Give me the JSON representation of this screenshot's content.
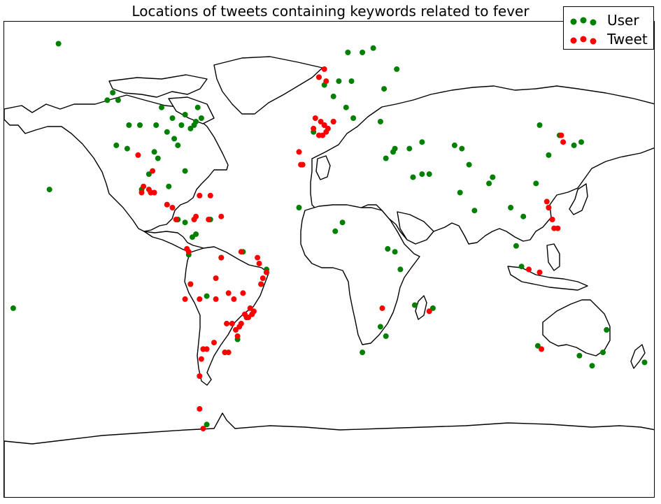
{
  "title": "Locations of tweets containing keywords related to fever",
  "legend": {
    "placement": "top-right",
    "entries": [
      {
        "label": "User",
        "color": "#008000"
      },
      {
        "label": "Tweet",
        "color": "#ff0000"
      }
    ]
  },
  "map": {
    "projection": "miller",
    "land_fill": "#ffffff",
    "coastline_color": "#000000",
    "borders": "country and US/Brazil state boundaries"
  },
  "chart_data": {
    "type": "scatter",
    "title": "Locations of tweets containing keywords related to fever",
    "series": [
      {
        "name": "User",
        "color": "#008000",
        "points": [
          [
            -150,
            61
          ],
          [
            -155,
            20
          ],
          [
            -120,
            49
          ],
          [
            -123,
            47
          ],
          [
            -118,
            34
          ],
          [
            -112,
            33
          ],
          [
            -105,
            40
          ],
          [
            -97,
            32
          ],
          [
            -95,
            30
          ],
          [
            -90,
            38
          ],
          [
            -87,
            42
          ],
          [
            -84,
            34
          ],
          [
            -80,
            26
          ],
          [
            -75,
            40
          ],
          [
            -74,
            41
          ],
          [
            -71,
            42
          ],
          [
            -77,
            39
          ],
          [
            -82,
            40
          ],
          [
            -93,
            45
          ],
          [
            -104,
            20
          ],
          [
            -99,
            19
          ],
          [
            -100,
            25
          ],
          [
            -89,
            21
          ],
          [
            -90,
            15
          ],
          [
            -84,
            10
          ],
          [
            -80,
            9
          ],
          [
            -76,
            4
          ],
          [
            -74,
            5
          ],
          [
            -78,
            -2
          ],
          [
            -77,
            -12
          ],
          [
            -68,
            -16
          ],
          [
            -66,
            10
          ],
          [
            -70,
            -33
          ],
          [
            -58,
            -34
          ],
          [
            -46,
            -23
          ],
          [
            -43,
            -22
          ],
          [
            -38,
            -12
          ],
          [
            -35,
            -8
          ],
          [
            -48,
            -1
          ],
          [
            -60,
            -3
          ],
          [
            -68,
            -54
          ],
          [
            -3,
            40
          ],
          [
            2,
            41
          ],
          [
            -9,
            38
          ],
          [
            2,
            48
          ],
          [
            12,
            52
          ],
          [
            13,
            42
          ],
          [
            9,
            45
          ],
          [
            -6,
            53
          ],
          [
            -3,
            51
          ],
          [
            5,
            52
          ],
          [
            18,
            59
          ],
          [
            10,
            59
          ],
          [
            24,
            60
          ],
          [
            37,
            55
          ],
          [
            30,
            50
          ],
          [
            28,
            41
          ],
          [
            36,
            33
          ],
          [
            31,
            30
          ],
          [
            35,
            32
          ],
          [
            46,
            24
          ],
          [
            51,
            25
          ],
          [
            55,
            25
          ],
          [
            44,
            33
          ],
          [
            51,
            35
          ],
          [
            69,
            34
          ],
          [
            73,
            33
          ],
          [
            77,
            28
          ],
          [
            72,
            19
          ],
          [
            80,
            13
          ],
          [
            88,
            22
          ],
          [
            90,
            24
          ],
          [
            100,
            14
          ],
          [
            103,
            1
          ],
          [
            106,
            -6
          ],
          [
            107,
            11
          ],
          [
            116,
            40
          ],
          [
            121,
            31
          ],
          [
            114,
            22
          ],
          [
            127,
            37
          ],
          [
            139,
            35
          ],
          [
            135,
            34
          ],
          [
            121,
            14
          ],
          [
            151,
            -34
          ],
          [
            145,
            -38
          ],
          [
            153,
            -27
          ],
          [
            115,
            -32
          ],
          [
            138,
            -35
          ],
          [
            174,
            -37
          ],
          [
            3,
            6
          ],
          [
            -17,
            14
          ],
          [
            7,
            9
          ],
          [
            32,
            0
          ],
          [
            36,
            -1
          ],
          [
            39,
            -7
          ],
          [
            28,
            -26
          ],
          [
            18,
            -34
          ],
          [
            31,
            -29
          ],
          [
            47,
            -19
          ],
          [
            57,
            -20
          ],
          [
            -175,
            -20
          ],
          [
            -35,
            -7
          ],
          [
            -51,
            -30
          ],
          [
            -80,
            43
          ],
          [
            -73,
            45
          ],
          [
            -86,
            36
          ],
          [
            -96,
            40
          ],
          [
            -111,
            40
          ],
          [
            -117,
            47
          ]
        ]
      },
      {
        "name": "Tweet",
        "color": "#ff0000",
        "points": [
          [
            -3,
            40
          ],
          [
            -6,
            37
          ],
          [
            -4,
            37
          ],
          [
            -1,
            39
          ],
          [
            2,
            41
          ],
          [
            -8,
            42
          ],
          [
            -5,
            41
          ],
          [
            -2,
            38
          ],
          [
            -16,
            28
          ],
          [
            -15,
            28
          ],
          [
            -17,
            32
          ],
          [
            -9,
            39
          ],
          [
            -6,
            53
          ],
          [
            -2,
            52
          ],
          [
            -3,
            55
          ],
          [
            -99,
            19
          ],
          [
            -100,
            20
          ],
          [
            -103,
            21
          ],
          [
            -104,
            19
          ],
          [
            -97,
            19
          ],
          [
            -98,
            26
          ],
          [
            -106,
            31
          ],
          [
            -90,
            15
          ],
          [
            -87,
            14
          ],
          [
            -66,
            18
          ],
          [
            -75,
            10
          ],
          [
            -74,
            11
          ],
          [
            -67,
            10
          ],
          [
            -77,
            -12
          ],
          [
            -78,
            -1
          ],
          [
            -79,
            0
          ],
          [
            -72,
            -17
          ],
          [
            -63,
            -17
          ],
          [
            -57,
            -25
          ],
          [
            -58,
            -34
          ],
          [
            -56,
            -34
          ],
          [
            -64,
            -31
          ],
          [
            -68,
            -33
          ],
          [
            -70,
            -33
          ],
          [
            -71,
            -36
          ],
          [
            -72,
            -41
          ],
          [
            -46,
            -23
          ],
          [
            -43,
            -22
          ],
          [
            -47,
            -22
          ],
          [
            -49,
            -25
          ],
          [
            -51,
            -29
          ],
          [
            -44,
            -20
          ],
          [
            -48,
            -15
          ],
          [
            -38,
            -12
          ],
          [
            -35,
            -8
          ],
          [
            -40,
            -3
          ],
          [
            -49,
            -1
          ],
          [
            -60,
            -3
          ],
          [
            -54,
            -25
          ],
          [
            -52,
            -27
          ],
          [
            -50,
            -26
          ],
          [
            -45,
            -23
          ],
          [
            -42,
            -21
          ],
          [
            -53,
            -17
          ],
          [
            -56,
            -15
          ],
          [
            -39,
            -5
          ],
          [
            -37,
            -10
          ],
          [
            -63,
            -10
          ],
          [
            -70,
            -55
          ],
          [
            -72,
            -50
          ],
          [
            -80,
            -17
          ],
          [
            121,
            14
          ],
          [
            123,
            10
          ],
          [
            124,
            7
          ],
          [
            120,
            16
          ],
          [
            126,
            7
          ],
          [
            110,
            -7
          ],
          [
            116,
            -8
          ],
          [
            128,
            37
          ],
          [
            129,
            35
          ],
          [
            117,
            -33
          ],
          [
            29,
            -20
          ],
          [
            55,
            -21
          ],
          [
            -85,
            10
          ],
          [
            -72,
            18
          ],
          [
            -60,
            11
          ]
        ]
      }
    ]
  }
}
